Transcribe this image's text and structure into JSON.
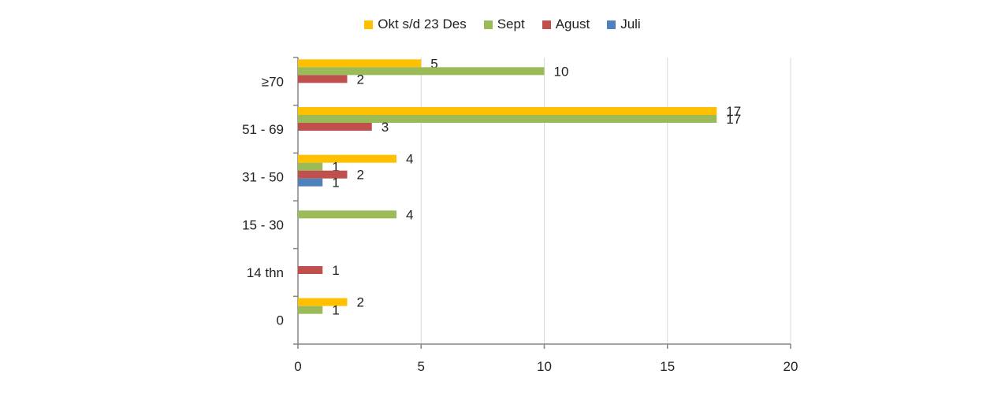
{
  "chart_data": {
    "type": "bar",
    "orientation": "horizontal",
    "categories": [
      "≥70",
      "51 - 69",
      "31 - 50",
      "15 - 30",
      "14 thn",
      "0"
    ],
    "series": [
      {
        "name": "Okt s/d 23 Des",
        "color": "#FFC000",
        "values": [
          5,
          17,
          4,
          null,
          null,
          2
        ]
      },
      {
        "name": "Sept",
        "color": "#9BBB59",
        "values": [
          10,
          17,
          1,
          4,
          null,
          1
        ]
      },
      {
        "name": "Agust",
        "color": "#C0504D",
        "values": [
          2,
          3,
          2,
          null,
          1,
          null
        ]
      },
      {
        "name": "Juli",
        "color": "#4F81BD",
        "values": [
          null,
          null,
          1,
          null,
          null,
          null
        ]
      }
    ],
    "legend_order": [
      "Okt s/d 23 Des",
      "Sept",
      "Agust",
      "Juli"
    ],
    "xlim": [
      0,
      20
    ],
    "xticks": [
      0,
      5,
      10,
      15,
      20
    ],
    "grid": "vertical",
    "legend_position": "top"
  }
}
